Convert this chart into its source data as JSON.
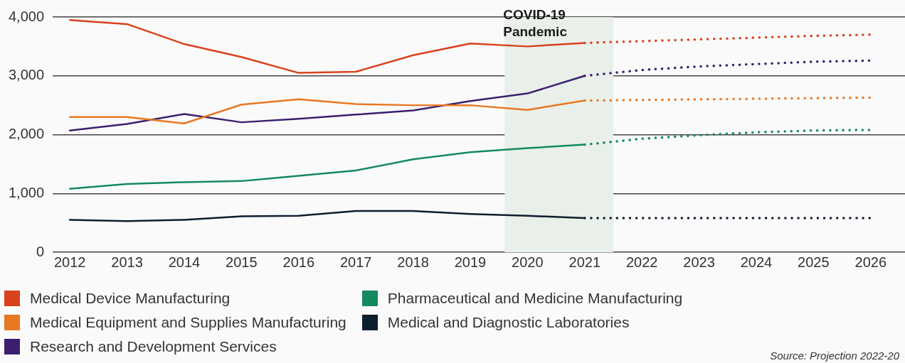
{
  "chart_data": {
    "type": "line",
    "x": [
      2012,
      2013,
      2014,
      2015,
      2016,
      2017,
      2018,
      2019,
      2020,
      2021
    ],
    "xlim": [
      2011.7,
      2026.6
    ],
    "xticks": [
      2012,
      2013,
      2014,
      2015,
      2016,
      2017,
      2018,
      2019,
      2020,
      2021,
      2022,
      2023,
      2024,
      2025,
      2026
    ],
    "ylim": [
      0,
      4000
    ],
    "yticks": [
      {
        "value": 0,
        "label": "0"
      },
      {
        "value": 1000,
        "label": "1,000"
      },
      {
        "value": 2000,
        "label": "2,000"
      },
      {
        "value": 3000,
        "label": "3,000"
      },
      {
        "value": 4000,
        "label": "4,000"
      }
    ],
    "grid": "y",
    "legend": "bottom",
    "marker": "none",
    "series": [
      {
        "name": "Medical Device Manufacturing",
        "color": "#d9411e",
        "line_style": "solid",
        "values": [
          3950,
          3880,
          3540,
          3320,
          3050,
          3070,
          3350,
          3550,
          3500,
          3560
        ]
      },
      {
        "name": "Medical Equipment and Supplies Manufacturing",
        "color": "#e87722",
        "line_style": "solid",
        "values": [
          2300,
          2300,
          2190,
          2510,
          2600,
          2520,
          2500,
          2500,
          2420,
          2580
        ]
      },
      {
        "name": "Research and Development Services",
        "color": "#3b1f6e",
        "line_style": "solid",
        "values": [
          2070,
          2180,
          2350,
          2210,
          2270,
          2340,
          2410,
          2570,
          2700,
          3000
        ]
      },
      {
        "name": "Pharmaceutical and Medicine Manufacturing",
        "color": "#138a5e",
        "line_style": "solid",
        "values": [
          1080,
          1160,
          1190,
          1210,
          1300,
          1390,
          1580,
          1700,
          1770,
          1830
        ]
      },
      {
        "name": "Medical and Diagnostic Laboratories",
        "color": "#0f1e2e",
        "line_style": "solid",
        "values": [
          550,
          530,
          550,
          610,
          620,
          700,
          700,
          650,
          620,
          580
        ]
      },
      {
        "color": "#d9411e",
        "line_style": "dotted",
        "x": [
          2021,
          2022,
          2023,
          2024,
          2025,
          2026
        ],
        "values": [
          3560,
          3590,
          3620,
          3650,
          3680,
          3700
        ]
      },
      {
        "color": "#e87722",
        "line_style": "dotted",
        "x": [
          2021,
          2022,
          2023,
          2024,
          2025,
          2026
        ],
        "values": [
          2580,
          2590,
          2600,
          2610,
          2620,
          2630
        ]
      },
      {
        "color": "#3b1f6e",
        "line_style": "dotted",
        "x": [
          2021,
          2022,
          2023,
          2024,
          2025,
          2026
        ],
        "values": [
          3000,
          3100,
          3160,
          3200,
          3240,
          3260
        ]
      },
      {
        "color": "#138a5e",
        "line_style": "dotted",
        "x": [
          2021,
          2022,
          2023,
          2024,
          2025,
          2026
        ],
        "values": [
          1830,
          1930,
          1990,
          2040,
          2070,
          2080
        ]
      },
      {
        "color": "#0f1e2e",
        "line_style": "dotted",
        "x": [
          2021,
          2022,
          2023,
          2024,
          2025,
          2026
        ],
        "values": [
          580,
          580,
          580,
          580,
          580,
          580
        ]
      }
    ],
    "bands": [
      {
        "axis": "x",
        "from": 2019.6,
        "to": 2021.5,
        "color": "#e9efe9",
        "label": "COVID-19 Pandemic"
      }
    ],
    "annotations": [
      "Source: Projection 2022-20"
    ]
  }
}
